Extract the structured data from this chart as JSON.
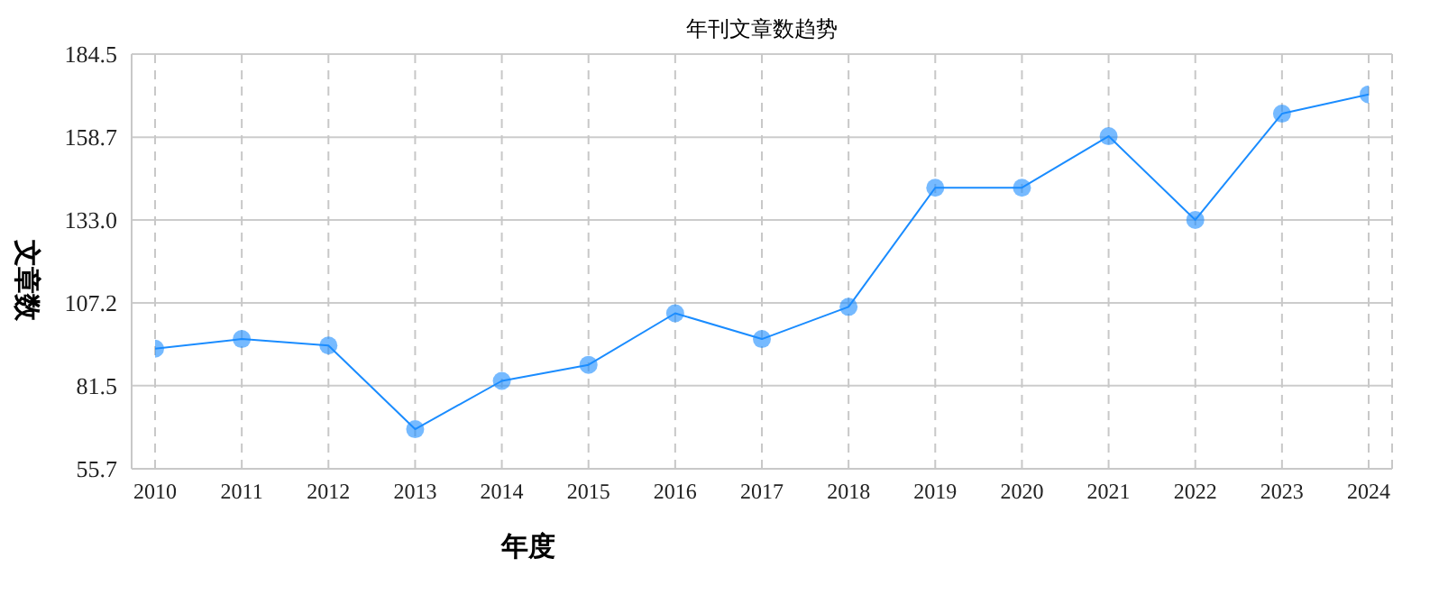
{
  "chart_data": {
    "type": "line",
    "title": "年刊文章数趋势",
    "xlabel": "年度",
    "ylabel": "文章数",
    "categories": [
      "2010",
      "2011",
      "2012",
      "2013",
      "2014",
      "2015",
      "2016",
      "2017",
      "2018",
      "2019",
      "2020",
      "2021",
      "2022",
      "2023",
      "2024"
    ],
    "series": [
      {
        "color": "#1a8cff",
        "values": [
          93,
          96,
          94,
          68,
          83,
          88,
          104,
          96,
          106,
          143,
          143,
          159,
          133,
          166,
          172
        ]
      }
    ],
    "ylim": [
      55.7,
      184.5
    ],
    "yticks": [
      55.7,
      81.5,
      107.2,
      {
        "value": 133,
        "label": "133.0"
      },
      158.7,
      184.5
    ],
    "grid": true,
    "marker": "circle",
    "line_style": "solid",
    "legend": false
  }
}
